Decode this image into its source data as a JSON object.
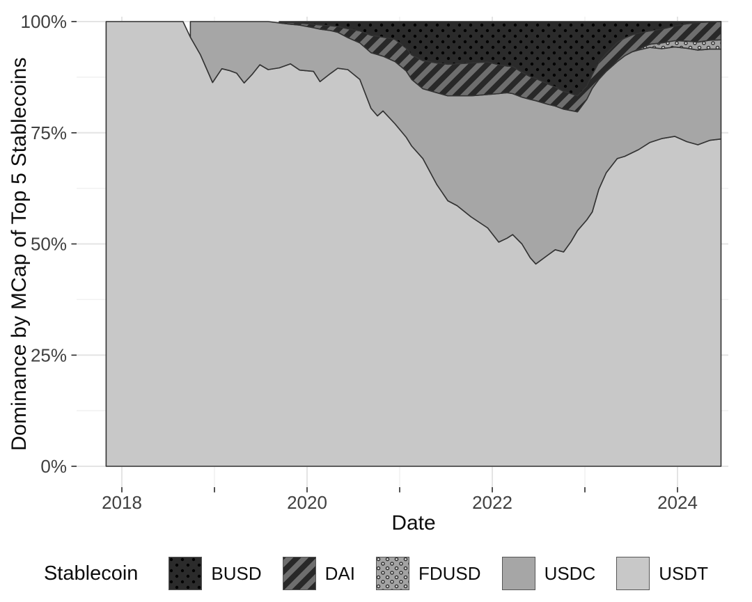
{
  "figure": {
    "background": "#ffffff",
    "x_axis_title": "Date",
    "y_axis_title": "Dominance by MCap of Top 5 Stablecoins"
  },
  "legend": {
    "title": "Stablecoin",
    "position": "bottom",
    "items": [
      {
        "label": "BUSD",
        "series": "BUSD"
      },
      {
        "label": "DAI",
        "series": "DAI"
      },
      {
        "label": "FDUSD",
        "series": "FDUSD"
      },
      {
        "label": "USDC",
        "series": "USDC"
      },
      {
        "label": "USDT",
        "series": "USDT"
      }
    ]
  },
  "chart_data": {
    "type": "area",
    "stacked": true,
    "normalized_percent": true,
    "xlabel": "Date",
    "ylabel": "Dominance by MCap of Top 5 Stablecoins",
    "x_unit": "decimal_year",
    "xlim": [
      2017.51,
      2024.55
    ],
    "ylim": [
      0,
      100
    ],
    "grid": true,
    "legend_position": "bottom",
    "x": [
      2017.83,
      2018.0,
      2018.3,
      2018.55,
      2018.66,
      2018.74,
      2018.85,
      2018.98,
      2019.08,
      2019.16,
      2019.24,
      2019.32,
      2019.41,
      2019.49,
      2019.58,
      2019.7,
      2019.82,
      2019.92,
      2020.07,
      2020.14,
      2020.25,
      2020.33,
      2020.44,
      2020.57,
      2020.69,
      2020.76,
      2020.82,
      2020.95,
      2021.07,
      2021.13,
      2021.25,
      2021.4,
      2021.52,
      2021.62,
      2021.77,
      2021.95,
      2022.07,
      2022.16,
      2022.22,
      2022.32,
      2022.41,
      2022.47,
      2022.6,
      2022.68,
      2022.77,
      2022.85,
      2022.92,
      2023.02,
      2023.08,
      2023.15,
      2023.23,
      2023.35,
      2023.43,
      2023.51,
      2023.58,
      2023.7,
      2023.83,
      2023.97,
      2024.1,
      2024.22,
      2024.35,
      2024.47
    ],
    "series": [
      {
        "name": "USDT",
        "pattern": "solid",
        "color": "#c8c8c8",
        "values": [
          100,
          100,
          100,
          100,
          100,
          96.5,
          92.5,
          86.3,
          89.4,
          89,
          88.4,
          86.2,
          88.2,
          90.3,
          89.2,
          89.6,
          90.5,
          89.1,
          88.8,
          86.5,
          88.3,
          89.5,
          89.2,
          87,
          80.5,
          78.8,
          79.9,
          77,
          74,
          72,
          69.2,
          63.4,
          59.7,
          58.6,
          56.1,
          53.6,
          50.4,
          51.3,
          52.1,
          50,
          46.9,
          45.5,
          47.5,
          48.7,
          48.2,
          50.5,
          53,
          55.4,
          57.2,
          62.3,
          66,
          69.2,
          69.7,
          70.5,
          71.2,
          72.8,
          73.7,
          74.2,
          73,
          72.3,
          73.3,
          73.6
        ]
      },
      {
        "name": "USDC",
        "pattern": "solid",
        "color": "#a6a6a6",
        "values": [
          null,
          null,
          null,
          null,
          null,
          3.5,
          7.5,
          13.7,
          10.6,
          11,
          11.6,
          13.8,
          11.8,
          9.7,
          10.8,
          10.1,
          8.9,
          10.1,
          9.8,
          11.8,
          9.7,
          8.1,
          7.2,
          8.2,
          12.5,
          13.8,
          12.3,
          14,
          14.9,
          15,
          15.7,
          20.6,
          23.6,
          24.7,
          27.2,
          30,
          33.4,
          32.7,
          31.7,
          33,
          35.6,
          36.7,
          33.9,
          32.3,
          32.1,
          29.5,
          26.7,
          27.1,
          27.8,
          24.7,
          22.8,
          21.8,
          22.6,
          22.7,
          22.4,
          21.4,
          20.2,
          20.1,
          21,
          21.3,
          20.5,
          20.2
        ]
      },
      {
        "name": "FDUSD",
        "pattern": "rings",
        "color": "#a3a3a3",
        "values": [
          null,
          null,
          null,
          null,
          null,
          null,
          null,
          null,
          null,
          null,
          null,
          null,
          null,
          null,
          null,
          null,
          null,
          null,
          null,
          null,
          null,
          null,
          null,
          null,
          null,
          null,
          null,
          null,
          null,
          null,
          null,
          null,
          null,
          null,
          null,
          null,
          null,
          null,
          null,
          null,
          null,
          null,
          null,
          null,
          null,
          null,
          null,
          null,
          null,
          null,
          null,
          null,
          null,
          0,
          0.2,
          0.7,
          1.3,
          1.4,
          1.6,
          1.8,
          2,
          2.1
        ]
      },
      {
        "name": "DAI",
        "pattern": "stripes",
        "color": "#6e6e6e",
        "values": [
          null,
          null,
          null,
          null,
          null,
          null,
          null,
          null,
          null,
          null,
          null,
          null,
          null,
          null,
          null,
          0.2,
          0.35,
          0.45,
          0.8,
          0.95,
          1.1,
          1.3,
          2,
          2.7,
          3.9,
          4.1,
          4.3,
          5,
          5.1,
          5.5,
          6.3,
          6.7,
          7.1,
          7.2,
          7.4,
          7.3,
          6.5,
          6,
          6.1,
          5.6,
          5.1,
          5,
          4.6,
          4.3,
          4,
          3.8,
          3.6,
          3,
          3.1,
          3.8,
          4,
          4.3,
          4,
          3.8,
          3.6,
          3,
          3.1,
          3.3,
          3.9,
          4.4,
          4.1,
          4.1
        ]
      },
      {
        "name": "BUSD",
        "pattern": "dots",
        "color": "#2b2b2b",
        "values": [
          null,
          null,
          null,
          null,
          null,
          null,
          null,
          null,
          null,
          null,
          null,
          null,
          null,
          null,
          null,
          0.1,
          0.25,
          0.35,
          0.6,
          0.75,
          0.9,
          1.1,
          1.6,
          2.1,
          3.1,
          3.3,
          3.5,
          4,
          6,
          7.5,
          8.8,
          9.3,
          9.6,
          9.5,
          9.3,
          9.1,
          9.7,
          10,
          10.1,
          11.4,
          12.4,
          12.8,
          14,
          14.7,
          15.7,
          16.2,
          16.7,
          14.5,
          11.9,
          9.2,
          7.2,
          4.7,
          3.7,
          3,
          2.6,
          2.1,
          1.7,
          1,
          0.5,
          0.2,
          0.1,
          0
        ]
      }
    ],
    "x_ticks": [
      {
        "value": 2018,
        "label": "2018"
      },
      {
        "value": 2019,
        "label": ""
      },
      {
        "value": 2020,
        "label": "2020"
      },
      {
        "value": 2021,
        "label": ""
      },
      {
        "value": 2022,
        "label": "2022"
      },
      {
        "value": 2023,
        "label": ""
      },
      {
        "value": 2024,
        "label": "2024"
      }
    ],
    "y_ticks": [
      {
        "value": 0,
        "label": "0%"
      },
      {
        "value": 25,
        "label": "25%"
      },
      {
        "value": 50,
        "label": "50%"
      },
      {
        "value": 75,
        "label": "75%"
      },
      {
        "value": 100,
        "label": "100%"
      }
    ],
    "y_minor": [
      12.5,
      37.5,
      62.5,
      87.5
    ],
    "style": {
      "grid_major": "#e4e4e4",
      "grid_minor": "#f1f1f1",
      "area_stroke": "#333333",
      "tick_color": "#333333",
      "tick_text": "#404040",
      "title_text": "#0d0d0d"
    }
  }
}
